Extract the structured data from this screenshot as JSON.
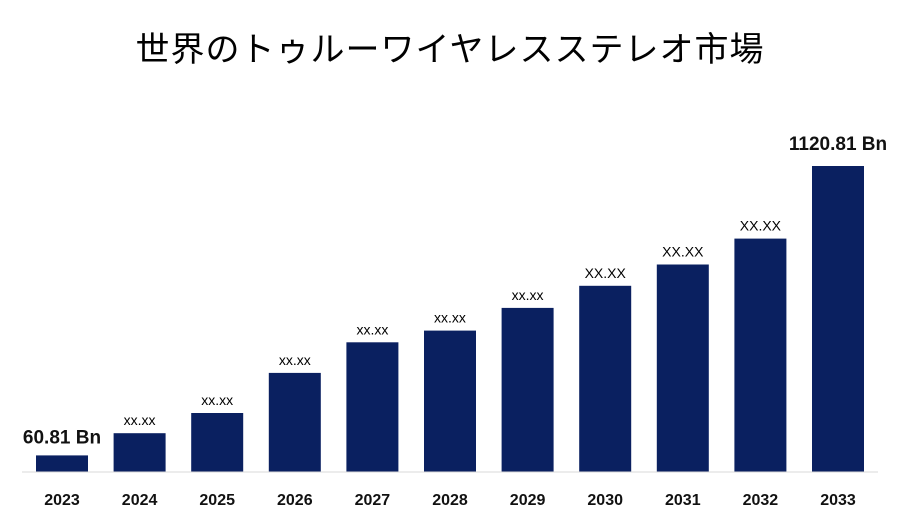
{
  "title": "世界のトゥルーワイヤレスステレオ市場",
  "colors": {
    "bar": "#0a2060",
    "axis": "#d9d9d9"
  },
  "chart_data": {
    "type": "bar",
    "title": "世界のトゥルーワイヤレスステレオ市場",
    "xlabel": "",
    "ylabel": "",
    "categories": [
      "2023",
      "2024",
      "2025",
      "2026",
      "2027",
      "2028",
      "2029",
      "2030",
      "2031",
      "2032",
      "2033"
    ],
    "values": [
      60.81,
      142,
      216,
      363,
      475,
      518,
      601,
      682,
      760,
      855,
      1120.81
    ],
    "data_labels": [
      "60.81 Bn",
      "xx.xx",
      "xx.xx",
      "xx.xx",
      "xx.xx",
      "xx.xx",
      "xx.xx",
      "XX.XX",
      "XX.XX",
      "XX.XX",
      "1120.81 Bn"
    ],
    "ylim": [
      0,
      1120.81
    ],
    "grid": false,
    "legend": "none"
  }
}
